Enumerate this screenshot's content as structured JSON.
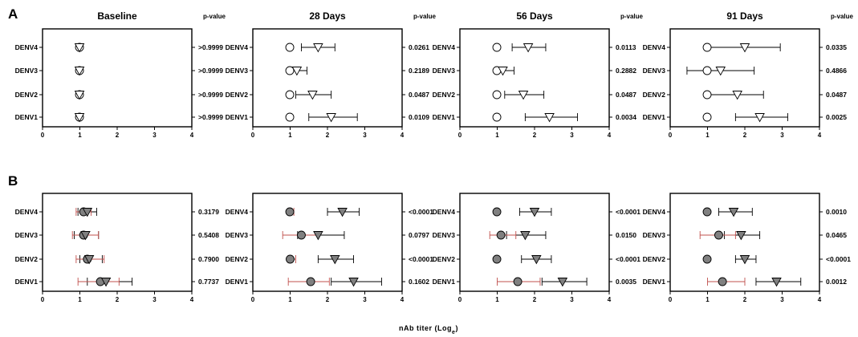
{
  "chart_data": {
    "type": "scatter",
    "xlabel": "nAb titer (Log",
    "xlabel_subscript": "e",
    "xlabel_suffix": ")",
    "xlim": [
      0,
      4
    ],
    "xticks": [
      "0",
      "1",
      "2",
      "3",
      "4"
    ],
    "pvalue_header": "p-value",
    "categories": [
      "DENV4",
      "DENV3",
      "DENV2",
      "DENV1"
    ],
    "colors": {
      "open_marker": "#ffffff",
      "filled_marker": "#808080",
      "circle_error_bar_B": "#c0504d",
      "triangle_error_bar": "#000000",
      "marker_edge": "#000000"
    },
    "rows": [
      {
        "letter": "A",
        "marker_fill": "open",
        "panels": [
          {
            "title": "Baseline",
            "pvalues": [
              ">0.9999",
              ">0.9999",
              ">0.9999",
              ">0.9999"
            ],
            "circle": [
              {
                "x": 0.99,
                "lo": 0.99,
                "hi": 0.99
              },
              {
                "x": 0.99,
                "lo": 0.99,
                "hi": 0.99
              },
              {
                "x": 0.99,
                "lo": 0.99,
                "hi": 0.99
              },
              {
                "x": 0.99,
                "lo": 0.99,
                "hi": 0.99
              }
            ],
            "triangle": [
              {
                "x": 0.99,
                "lo": 0.99,
                "hi": 0.99
              },
              {
                "x": 0.99,
                "lo": 0.99,
                "hi": 0.99
              },
              {
                "x": 0.99,
                "lo": 0.99,
                "hi": 0.99
              },
              {
                "x": 0.99,
                "lo": 0.99,
                "hi": 0.99
              }
            ]
          },
          {
            "title": "28 Days",
            "pvalues": [
              "0.0261",
              "0.2189",
              "0.0487",
              "0.0109"
            ],
            "circle": [
              {
                "x": 0.99,
                "lo": 0.99,
                "hi": 0.99
              },
              {
                "x": 0.99,
                "lo": 0.99,
                "hi": 0.99
              },
              {
                "x": 0.99,
                "lo": 0.99,
                "hi": 0.99
              },
              {
                "x": 0.99,
                "lo": 0.99,
                "hi": 0.99
              }
            ],
            "triangle": [
              {
                "x": 1.75,
                "lo": 1.3,
                "hi": 2.2
              },
              {
                "x": 1.18,
                "lo": 0.99,
                "hi": 1.45
              },
              {
                "x": 1.6,
                "lo": 1.15,
                "hi": 2.1
              },
              {
                "x": 2.1,
                "lo": 1.5,
                "hi": 2.8
              }
            ]
          },
          {
            "title": "56 Days",
            "pvalues": [
              "0.0113",
              "0.2882",
              "0.0487",
              "0.0034"
            ],
            "circle": [
              {
                "x": 0.99,
                "lo": 0.99,
                "hi": 0.99
              },
              {
                "x": 0.99,
                "lo": 0.99,
                "hi": 0.99
              },
              {
                "x": 0.99,
                "lo": 0.99,
                "hi": 0.99
              },
              {
                "x": 0.99,
                "lo": 0.99,
                "hi": 0.99
              }
            ],
            "triangle": [
              {
                "x": 1.83,
                "lo": 1.4,
                "hi": 2.3
              },
              {
                "x": 1.15,
                "lo": 0.99,
                "hi": 1.45
              },
              {
                "x": 1.7,
                "lo": 1.2,
                "hi": 2.25
              },
              {
                "x": 2.4,
                "lo": 1.75,
                "hi": 3.15
              }
            ]
          },
          {
            "title": "91 Days",
            "pvalues": [
              "0.0335",
              "0.4866",
              "0.0487",
              "0.0025"
            ],
            "circle": [
              {
                "x": 0.99,
                "lo": 0.99,
                "hi": 0.99
              },
              {
                "x": 0.99,
                "lo": 0.99,
                "hi": 0.99
              },
              {
                "x": 0.99,
                "lo": 0.99,
                "hi": 0.99
              },
              {
                "x": 0.99,
                "lo": 0.99,
                "hi": 0.99
              }
            ],
            "triangle": [
              {
                "x": 2.0,
                "lo": 1.0,
                "hi": 2.95
              },
              {
                "x": 1.35,
                "lo": 0.45,
                "hi": 2.25
              },
              {
                "x": 1.8,
                "lo": 1.0,
                "hi": 2.5
              },
              {
                "x": 2.4,
                "lo": 1.75,
                "hi": 3.15
              }
            ]
          }
        ]
      },
      {
        "letter": "B",
        "marker_fill": "filled",
        "panels": [
          {
            "title": "",
            "pvalues": [
              "0.3179",
              "0.5408",
              "0.7900",
              "0.7737"
            ],
            "circle": [
              {
                "x": 1.1,
                "lo": 0.9,
                "hi": 1.3
              },
              {
                "x": 1.1,
                "lo": 0.8,
                "hi": 1.5
              },
              {
                "x": 1.2,
                "lo": 0.9,
                "hi": 1.65
              },
              {
                "x": 1.55,
                "lo": 0.95,
                "hi": 2.05
              }
            ],
            "triangle": [
              {
                "x": 1.2,
                "lo": 0.95,
                "hi": 1.45
              },
              {
                "x": 1.15,
                "lo": 0.85,
                "hi": 1.5
              },
              {
                "x": 1.25,
                "lo": 1.0,
                "hi": 1.6
              },
              {
                "x": 1.7,
                "lo": 1.2,
                "hi": 2.4
              }
            ]
          },
          {
            "title": "",
            "pvalues": [
              "<0.0001",
              "0.0797",
              "<0.0001",
              "0.1602"
            ],
            "circle": [
              {
                "x": 0.99,
                "lo": 0.95,
                "hi": 1.1
              },
              {
                "x": 1.3,
                "lo": 0.8,
                "hi": 1.75
              },
              {
                "x": 1.0,
                "lo": 0.95,
                "hi": 1.15
              },
              {
                "x": 1.55,
                "lo": 0.95,
                "hi": 2.05
              }
            ],
            "triangle": [
              {
                "x": 2.4,
                "lo": 2.0,
                "hi": 2.85
              },
              {
                "x": 1.75,
                "lo": 1.2,
                "hi": 2.45
              },
              {
                "x": 2.2,
                "lo": 1.75,
                "hi": 2.7
              },
              {
                "x": 2.7,
                "lo": 2.1,
                "hi": 3.45
              }
            ]
          },
          {
            "title": "",
            "pvalues": [
              "<0.0001",
              "0.0150",
              "<0.0001",
              "0.0035"
            ],
            "circle": [
              {
                "x": 0.99,
                "lo": 0.99,
                "hi": 0.99
              },
              {
                "x": 1.1,
                "lo": 0.8,
                "hi": 1.5
              },
              {
                "x": 0.99,
                "lo": 0.99,
                "hi": 0.99
              },
              {
                "x": 1.55,
                "lo": 1.0,
                "hi": 2.15
              }
            ],
            "triangle": [
              {
                "x": 2.0,
                "lo": 1.6,
                "hi": 2.45
              },
              {
                "x": 1.75,
                "lo": 1.25,
                "hi": 2.3
              },
              {
                "x": 2.05,
                "lo": 1.65,
                "hi": 2.45
              },
              {
                "x": 2.75,
                "lo": 2.2,
                "hi": 3.4
              }
            ]
          },
          {
            "title": "",
            "pvalues": [
              "0.0010",
              "0.0465",
              "<0.0001",
              "0.0012"
            ],
            "circle": [
              {
                "x": 0.99,
                "lo": 0.99,
                "hi": 0.99
              },
              {
                "x": 1.3,
                "lo": 0.8,
                "hi": 1.75
              },
              {
                "x": 0.99,
                "lo": 0.99,
                "hi": 0.99
              },
              {
                "x": 1.4,
                "lo": 1.0,
                "hi": 2.0
              }
            ],
            "triangle": [
              {
                "x": 1.7,
                "lo": 1.3,
                "hi": 2.2
              },
              {
                "x": 1.9,
                "lo": 1.45,
                "hi": 2.4
              },
              {
                "x": 2.0,
                "lo": 1.75,
                "hi": 2.3
              },
              {
                "x": 2.85,
                "lo": 2.3,
                "hi": 3.5
              }
            ]
          }
        ]
      }
    ]
  }
}
